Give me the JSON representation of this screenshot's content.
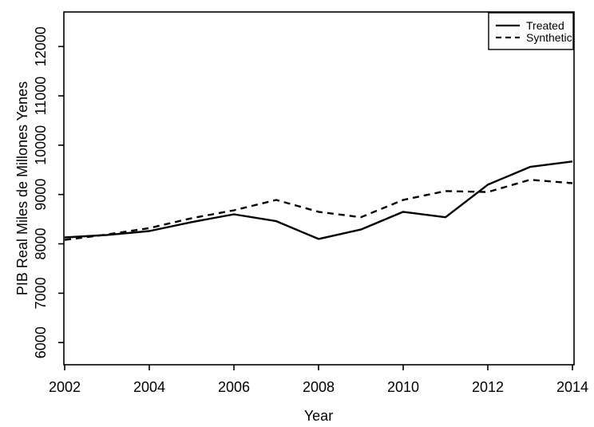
{
  "chart_data": {
    "type": "line",
    "title": "",
    "xlabel": "Year",
    "ylabel": "PIB Real Miles de Millones Yenes",
    "x": [
      2002,
      2003,
      2004,
      2005,
      2006,
      2007,
      2008,
      2009,
      2010,
      2011,
      2012,
      2013,
      2014
    ],
    "series": [
      {
        "name": "Treated",
        "style": "solid",
        "color": "#000000",
        "values": [
          8130,
          8180,
          8260,
          8440,
          8600,
          8460,
          8100,
          8290,
          8650,
          8540,
          9200,
          9560,
          9670
        ]
      },
      {
        "name": "Synthetic",
        "style": "dashed",
        "color": "#000000",
        "values": [
          8080,
          8190,
          8320,
          8520,
          8680,
          8890,
          8650,
          8540,
          8890,
          9070,
          9050,
          9300,
          9230
        ]
      }
    ],
    "x_ticks": [
      2002,
      2004,
      2006,
      2008,
      2010,
      2012,
      2014
    ],
    "y_ticks": [
      6000,
      7000,
      8000,
      9000,
      10000,
      11000,
      12000
    ],
    "xlim": [
      2002,
      2014
    ],
    "ylim": [
      5550,
      12700
    ],
    "grid": false,
    "legend_position": "top-right",
    "line_color": "#000000",
    "background": "#ffffff"
  }
}
